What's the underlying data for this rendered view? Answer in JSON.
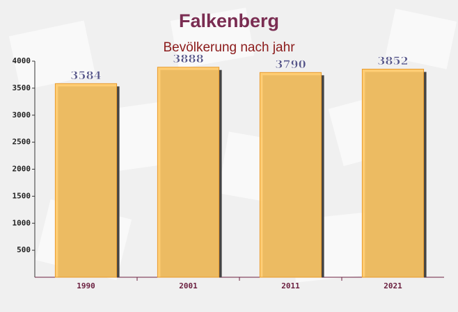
{
  "chart_data": {
    "type": "bar",
    "title": "Falkenberg",
    "subtitle": "Bevölkerung nach jahr",
    "categories": [
      "1990",
      "2001",
      "2011",
      "2021"
    ],
    "values": [
      3584,
      3888,
      3790,
      3852
    ],
    "color": "#ffc966",
    "ylim": [
      0,
      4000
    ],
    "yticks": [
      500,
      1000,
      1500,
      2000,
      2500,
      3000,
      3500,
      4000
    ],
    "grid": false
  }
}
